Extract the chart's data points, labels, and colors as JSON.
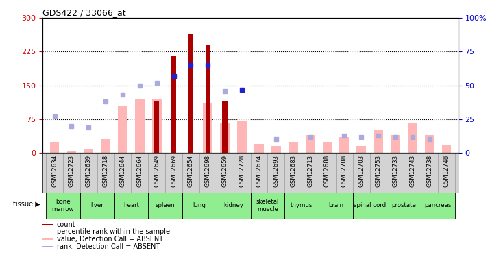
{
  "title": "GDS422 / 33066_at",
  "samples": [
    "GSM12634",
    "GSM12723",
    "GSM12639",
    "GSM12718",
    "GSM12644",
    "GSM12664",
    "GSM12649",
    "GSM12669",
    "GSM12654",
    "GSM12698",
    "GSM12659",
    "GSM12728",
    "GSM12674",
    "GSM12693",
    "GSM12683",
    "GSM12713",
    "GSM12688",
    "GSM12708",
    "GSM12703",
    "GSM12753",
    "GSM12733",
    "GSM12743",
    "GSM12738",
    "GSM12748"
  ],
  "tissues": [
    {
      "label": "bone\nmarrow",
      "span": 2
    },
    {
      "label": "liver",
      "span": 2
    },
    {
      "label": "heart",
      "span": 2
    },
    {
      "label": "spleen",
      "span": 2
    },
    {
      "label": "lung",
      "span": 2
    },
    {
      "label": "kidney",
      "span": 2
    },
    {
      "label": "skeletal\nmuscle",
      "span": 2
    },
    {
      "label": "thymus",
      "span": 2
    },
    {
      "label": "brain",
      "span": 2
    },
    {
      "label": "spinal cord",
      "span": 2
    },
    {
      "label": "prostate",
      "span": 2
    },
    {
      "label": "pancreas",
      "span": 2
    }
  ],
  "count_values": [
    0,
    0,
    0,
    0,
    0,
    0,
    115,
    215,
    265,
    240,
    115,
    0,
    0,
    0,
    0,
    0,
    0,
    0,
    0,
    0,
    0,
    0,
    0,
    0
  ],
  "pink_bar_values": [
    25,
    5,
    8,
    30,
    105,
    120,
    120,
    0,
    0,
    110,
    65,
    70,
    20,
    15,
    25,
    40,
    25,
    35,
    15,
    50,
    40,
    65,
    40,
    18
  ],
  "blue_sq_pct": [
    0,
    0,
    0,
    0,
    0,
    0,
    0,
    57,
    65,
    65,
    0,
    47,
    0,
    0,
    0,
    0,
    0,
    0,
    0,
    0,
    0,
    0,
    0,
    0
  ],
  "light_blue_pct": [
    27,
    20,
    19,
    38,
    43,
    50,
    52,
    0,
    0,
    0,
    46,
    0,
    0,
    10,
    0,
    12,
    0,
    13,
    12,
    13,
    12,
    12,
    10,
    0
  ],
  "ylim_left": [
    0,
    300
  ],
  "ylim_right": [
    0,
    100
  ],
  "yticks_left": [
    0,
    75,
    150,
    225,
    300
  ],
  "yticks_right": [
    0,
    25,
    50,
    75,
    100
  ],
  "left_tick_color": "#cc0000",
  "right_tick_color": "#0000cc",
  "count_color": "#aa0000",
  "pink_color": "#ffb6b6",
  "blue_sq_color": "#2222cc",
  "light_blue_color": "#aaaadd",
  "grey_bg": "#d3d3d3",
  "green_bg": "#90EE90",
  "white_bg": "#ffffff"
}
